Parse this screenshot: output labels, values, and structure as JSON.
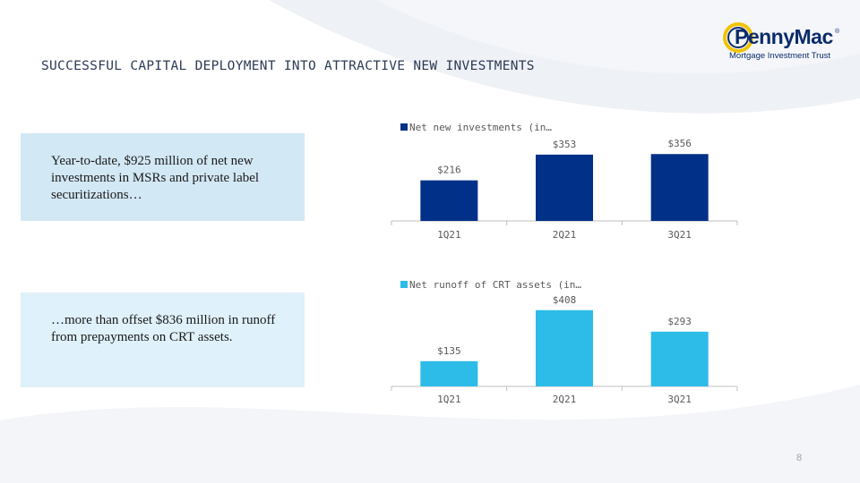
{
  "slide": {
    "title": "SUCCESSFUL CAPITAL DEPLOYMENT INTO ATTRACTIVE NEW INVESTMENTS",
    "page_number": "8"
  },
  "logo": {
    "name": "PennyMac",
    "registered": "®",
    "subtitle": "Mortgage Investment Trust"
  },
  "callouts": [
    {
      "text": "Year-to-date, $925 million of net new investments in MSRs and private label securitizations…"
    },
    {
      "text": "…more than offset $836 million in runoff from prepayments on CRT assets."
    }
  ],
  "colors": {
    "dark_navy": "#003087",
    "light_blue": "#2dbbe8",
    "axis": "#bfbfbf",
    "label": "#595959"
  },
  "chart_data": [
    {
      "type": "bar",
      "categories": [
        "1Q21",
        "2Q21",
        "3Q21"
      ],
      "series": [
        {
          "name": "Net new investments (in…",
          "values": [
            216,
            353,
            356
          ],
          "labels": [
            "$216",
            "$353",
            "$356"
          ]
        }
      ],
      "ylim": [
        0,
        400
      ],
      "grid": false,
      "legend": "top",
      "color": "#003087"
    },
    {
      "type": "bar",
      "categories": [
        "1Q21",
        "2Q21",
        "3Q21"
      ],
      "series": [
        {
          "name": "Net runoff of CRT assets (in…",
          "values": [
            135,
            408,
            293
          ],
          "labels": [
            "$135",
            "$408",
            "$293"
          ]
        }
      ],
      "ylim": [
        0,
        450
      ],
      "grid": false,
      "legend": "top",
      "color": "#2dbbe8"
    }
  ]
}
